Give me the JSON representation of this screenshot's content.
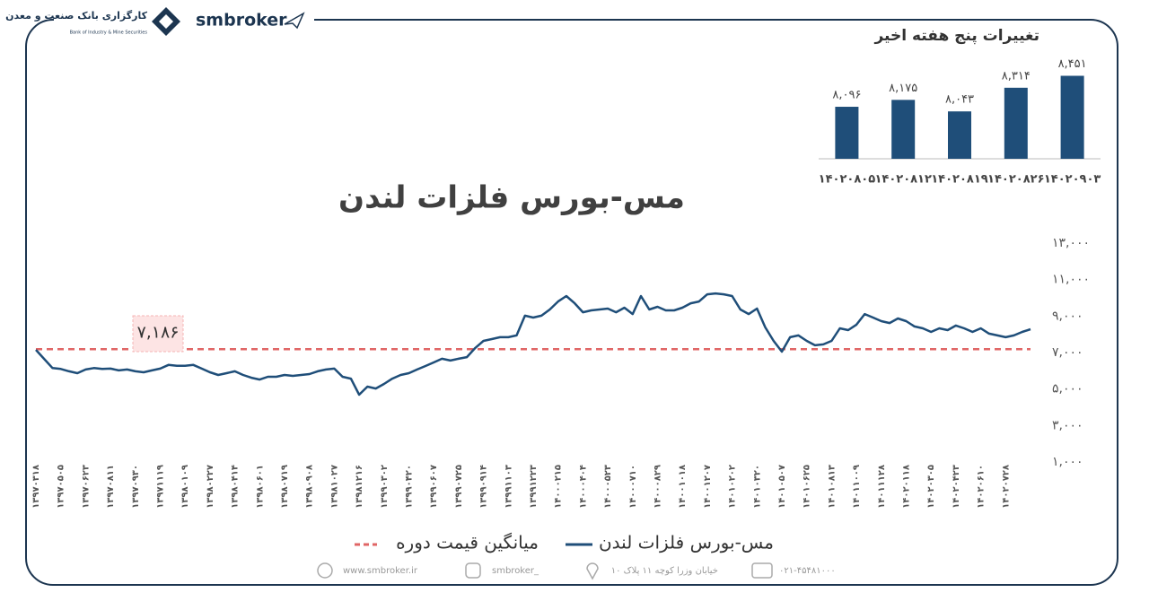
{
  "header": {
    "brand": "smbroker",
    "bank_name": "کارگزاری بانک صنعت و معدن",
    "bank_subtitle": "Bank of Industry & Mine Securities"
  },
  "chart_data": [
    {
      "type": "line",
      "title": "مس-بورس فلزات لندن",
      "categories": [
        "۱۳۹۷۰۳۱۸",
        null,
        null,
        "۱۳۹۷۰۵۰۵",
        null,
        null,
        "۱۳۹۷۰۶۲۳",
        null,
        null,
        "۱۳۹۷۰۸۱۱",
        null,
        null,
        "۱۳۹۷۰۹۳۰",
        null,
        null,
        "۱۳۹۷۱۱۱۹",
        null,
        null,
        "۱۳۹۸۰۱۰۹",
        null,
        null,
        "۱۳۹۸۰۲۲۷",
        null,
        null,
        "۱۳۹۸۰۴۱۴",
        null,
        null,
        "۱۳۹۸۰۶۰۱",
        null,
        null,
        "۱۳۹۸۰۷۱۹",
        null,
        null,
        "۱۳۹۸۰۹۰۸",
        null,
        null,
        "۱۳۹۸۱۰۲۷",
        null,
        null,
        "۱۳۹۸۱۲۱۶",
        null,
        null,
        "۱۳۹۹۰۳۰۲",
        null,
        null,
        "۱۳۹۹۰۴۲۰",
        null,
        null,
        "۱۳۹۹۰۶۰۷",
        null,
        null,
        "۱۳۹۹۰۷۲۵",
        null,
        null,
        "۱۳۹۹۰۹۱۴",
        null,
        null,
        "۱۳۹۹۱۱۰۳",
        null,
        null,
        "۱۳۹۹۱۲۲۳",
        null,
        null,
        "۱۴۰۰۰۲۱۵",
        null,
        null,
        "۱۴۰۰۰۴۰۴",
        null,
        null,
        "۱۴۰۰۰۵۲۳",
        null,
        null,
        "۱۴۰۰۰۷۱۰",
        null,
        null,
        "۱۴۰۰۰۸۲۹",
        null,
        null,
        "۱۴۰۰۱۰۱۸",
        null,
        null,
        "۱۴۰۰۱۲۰۷",
        null,
        null,
        "۱۴۰۱۰۲۰۲",
        null,
        null,
        "۱۴۰۱۰۳۲۰",
        null,
        null,
        "۱۴۰۱۰۵۰۷",
        null,
        null,
        "۱۴۰۱۰۶۲۵",
        null,
        null,
        "۱۴۰۱۰۸۱۳",
        null,
        null,
        "۱۴۰۱۱۰۰۹",
        null,
        null,
        "۱۴۰۱۱۱۲۸",
        null,
        null,
        "۱۴۰۲۰۱۱۸",
        null,
        null,
        "۱۴۰۲۰۳۰۵",
        null,
        null,
        "۱۴۰۲۰۴۲۳",
        null,
        null,
        "۱۴۰۲۰۶۱۰",
        null,
        null,
        "۱۴۰۲۰۷۲۸",
        null,
        null,
        null
      ],
      "series": [
        {
          "name": "مس-بورس فلزات لندن",
          "color": "#1f4e79",
          "values": [
            7150,
            6650,
            6150,
            6100,
            5970,
            5870,
            6070,
            6150,
            6100,
            6120,
            6020,
            6070,
            5970,
            5920,
            6020,
            6120,
            6320,
            6270,
            6270,
            6320,
            6120,
            5920,
            5770,
            5870,
            5970,
            5770,
            5620,
            5520,
            5670,
            5670,
            5770,
            5720,
            5770,
            5820,
            5970,
            6070,
            6120,
            5670,
            5570,
            4690,
            5130,
            5030,
            5280,
            5570,
            5770,
            5870,
            6070,
            6260,
            6460,
            6660,
            6560,
            6660,
            6750,
            7250,
            7640,
            7740,
            7840,
            7840,
            7940,
            9020,
            8920,
            9020,
            9360,
            9800,
            10100,
            9700,
            9210,
            9310,
            9360,
            9410,
            9210,
            9460,
            9110,
            10100,
            9360,
            9510,
            9310,
            9310,
            9460,
            9700,
            9800,
            10190,
            10240,
            10190,
            10100,
            9360,
            9110,
            9410,
            8380,
            7640,
            7050,
            7840,
            7940,
            7640,
            7400,
            7450,
            7640,
            8330,
            8230,
            8530,
            9110,
            8920,
            8720,
            8620,
            8870,
            8720,
            8430,
            8330,
            8130,
            8330,
            8230,
            8480,
            8330,
            8130,
            8330,
            8040,
            7940,
            7840,
            7940,
            8130,
            8280
          ]
        }
      ],
      "mean": {
        "name": "میانگین قیمت دوره",
        "value": 7186,
        "label": "۷,۱۸۶",
        "color": "#e06666"
      },
      "ylim": [
        1000,
        13000
      ],
      "yticks": [
        {
          "value": 1000,
          "label": "۱,۰۰۰"
        },
        {
          "value": 3000,
          "label": "۳,۰۰۰"
        },
        {
          "value": 5000,
          "label": "۵,۰۰۰"
        },
        {
          "value": 7000,
          "label": "۷,۰۰۰"
        },
        {
          "value": 9000,
          "label": "۹,۰۰۰"
        },
        {
          "value": 11000,
          "label": "۱۱,۰۰۰"
        },
        {
          "value": 13000,
          "label": "۱۳,۰۰۰"
        }
      ],
      "legend": "bottom"
    },
    {
      "type": "bar",
      "title": "تغییرات پنج هفته اخیر",
      "categories": [
        "۱۴۰۲۰۸۰۵",
        "۱۴۰۲۰۸۱۲",
        "۱۴۰۲۰۸۱۹",
        "۱۴۰۲۰۸۲۶",
        "۱۴۰۲۰۹۰۳"
      ],
      "values": [
        8096,
        8175,
        8043,
        8314,
        8451
      ],
      "value_labels": [
        "۸,۰۹۶",
        "۸,۱۷۵",
        "۸,۰۴۳",
        "۸,۳۱۴",
        "۸,۴۵۱"
      ],
      "color": "#1f4e79",
      "ylim": [
        7500,
        8600
      ]
    }
  ],
  "footer": {
    "website": "www.smbroker.ir",
    "instagram": "smbroker_",
    "address": "خیابان وزرا کوچه ۱۱ پلاک ۱۰",
    "phone": "۰۲۱-۴۵۴۸۱۰۰۰"
  }
}
